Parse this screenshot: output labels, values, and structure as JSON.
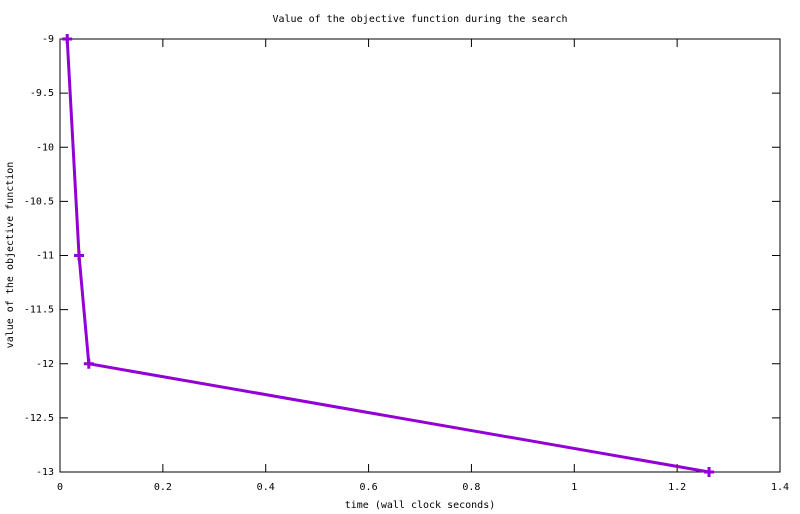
{
  "chart_data": {
    "type": "line",
    "title": "Value of the objective function during the search",
    "x_label": "time (wall clock seconds)",
    "y_label": "value of the objective function",
    "series": [
      {
        "color": "#9400d3",
        "x": [
          0.014,
          0.037,
          0.056,
          1.262
        ],
        "values": [
          -9,
          -11,
          -12,
          -13
        ]
      }
    ],
    "xlim": [
      0,
      1.4
    ],
    "xticks": [
      0,
      0.2,
      0.4,
      0.6,
      0.8,
      1,
      1.2,
      1.4
    ],
    "ylim": [
      -13,
      -9
    ],
    "yticks": [
      -9,
      -9.5,
      -10,
      -10.5,
      -11,
      -11.5,
      -12,
      -12.5,
      -13
    ],
    "grid": false
  }
}
